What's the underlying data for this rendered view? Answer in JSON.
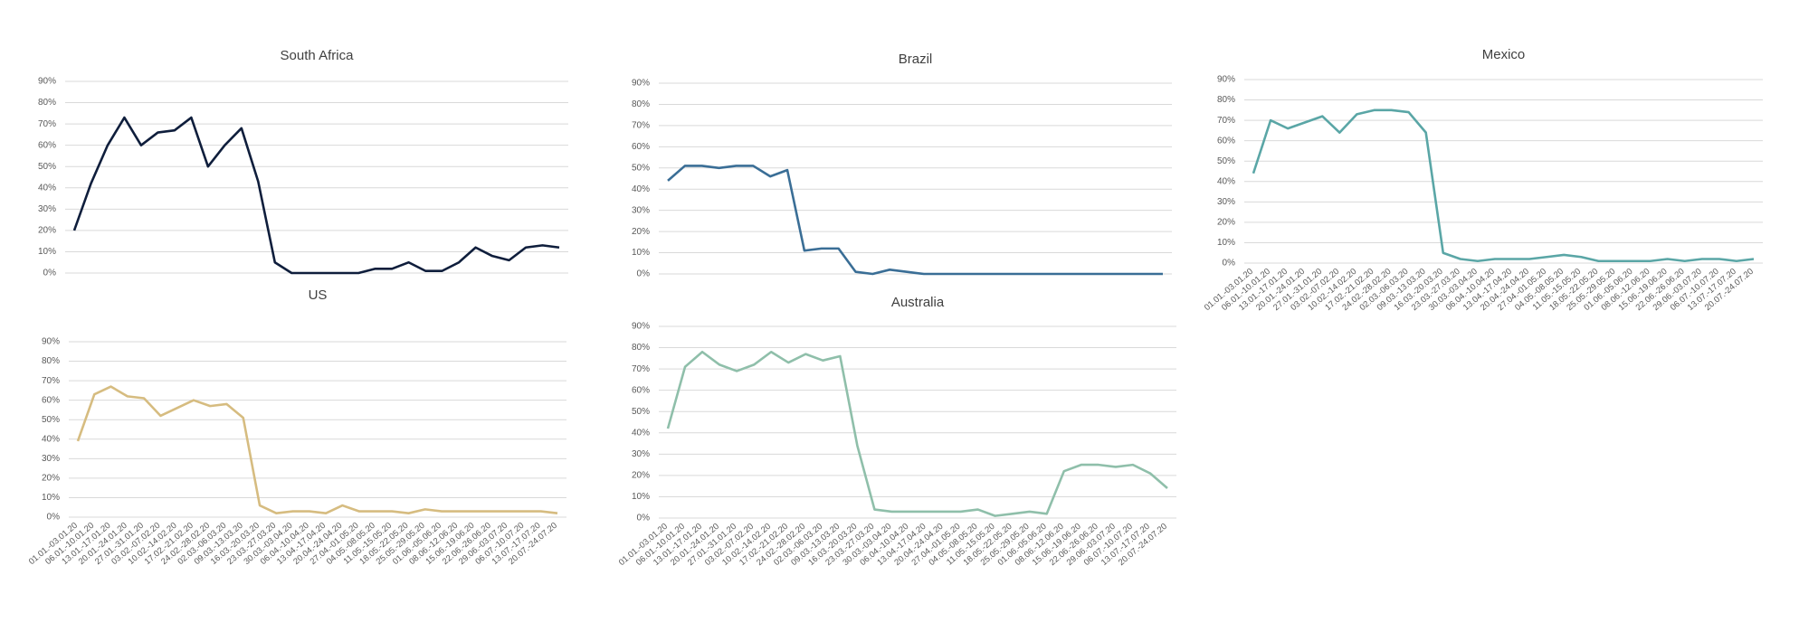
{
  "chart_data": [
    {
      "type": "line",
      "title": "South Africa",
      "color": "#0f1e3c",
      "values": [
        20,
        42,
        60,
        73,
        60,
        66,
        67,
        73,
        50,
        60,
        68,
        43,
        5,
        0,
        0,
        0,
        0,
        0,
        2,
        2,
        5,
        1,
        1,
        5,
        12,
        8,
        6,
        12,
        13,
        12
      ],
      "ylim": [
        0,
        90
      ],
      "yticks": [
        {
          "value": 0,
          "label": "0%"
        },
        {
          "value": 10,
          "label": "10%"
        },
        {
          "value": 20,
          "label": "20%"
        },
        {
          "value": 30,
          "label": "30%"
        },
        {
          "value": 40,
          "label": "40%"
        },
        {
          "value": 50,
          "label": "50%"
        },
        {
          "value": 60,
          "label": "60%"
        },
        {
          "value": 70,
          "label": "70%"
        },
        {
          "value": 80,
          "label": "80%"
        },
        {
          "value": 90,
          "label": "90%"
        }
      ],
      "grid": true
    },
    {
      "type": "line",
      "title": "Brazil",
      "color": "#3a6e96",
      "values": [
        44,
        51,
        51,
        50,
        51,
        51,
        46,
        49,
        11,
        12,
        12,
        1,
        0,
        2,
        1,
        0,
        0,
        0,
        0,
        0,
        0,
        0,
        0,
        0,
        0,
        0,
        0,
        0,
        0,
        0
      ],
      "ylim": [
        0,
        90
      ],
      "yticks": [
        {
          "value": 0,
          "label": "0%"
        },
        {
          "value": 10,
          "label": "10%"
        },
        {
          "value": 20,
          "label": "20%"
        },
        {
          "value": 30,
          "label": "30%"
        },
        {
          "value": 40,
          "label": "40%"
        },
        {
          "value": 50,
          "label": "50%"
        },
        {
          "value": 60,
          "label": "60%"
        },
        {
          "value": 70,
          "label": "70%"
        },
        {
          "value": 80,
          "label": "80%"
        },
        {
          "value": 90,
          "label": "90%"
        }
      ],
      "grid": true
    },
    {
      "type": "line",
      "title": "Mexico",
      "color": "#5aa6a6",
      "categories": [
        "01.01.-03.01.20",
        "06.01.-10.01.20",
        "13.01.-17.01.20",
        "20.01.-24.01.20",
        "27.01.-31.01.20",
        "03.02.-07.02.20",
        "10.02.-14.02.20",
        "17.02.-21.02.20",
        "24.02.-28.02.20",
        "02.03.-06.03.20",
        "09.03.-13.03.20",
        "16.03.-20.03.20",
        "23.03.-27.03.20",
        "30.03.-03.04.20",
        "06.04.-10.04.20",
        "13.04.-17.04.20",
        "20.04.-24.04.20",
        "27.04.-01.05.20",
        "04.05.-08.05.20",
        "11.05.-15.05.20",
        "18.05.-22.05.20",
        "25.05.-29.05.20",
        "01.06.-05.06.20",
        "08.06.-12.06.20",
        "15.06.-19.06.20",
        "22.06.-26.06.20",
        "29.06.-03.07.20",
        "06.07.-10.07.20",
        "13.07.-17.07.20",
        "20.07.-24.07.20"
      ],
      "values": [
        44,
        70,
        66,
        69,
        72,
        64,
        73,
        75,
        75,
        74,
        64,
        5,
        2,
        1,
        2,
        2,
        2,
        3,
        4,
        3,
        1,
        1,
        1,
        1,
        2,
        1,
        2,
        2,
        1,
        2
      ],
      "ylim": [
        0,
        90
      ],
      "yticks": [
        {
          "value": 0,
          "label": "0%"
        },
        {
          "value": 10,
          "label": "10%"
        },
        {
          "value": 20,
          "label": "20%"
        },
        {
          "value": 30,
          "label": "30%"
        },
        {
          "value": 40,
          "label": "40%"
        },
        {
          "value": 50,
          "label": "50%"
        },
        {
          "value": 60,
          "label": "60%"
        },
        {
          "value": 70,
          "label": "70%"
        },
        {
          "value": 80,
          "label": "80%"
        },
        {
          "value": 90,
          "label": "90%"
        }
      ],
      "grid": true
    },
    {
      "type": "line",
      "title": "US",
      "color": "#d6bc80",
      "categories": [
        "01.01.-03.01.20",
        "06.01.-10.01.20",
        "13.01.-17.01.20",
        "20.01.-24.01.20",
        "27.01.-31.01.20",
        "03.02.-07.02.20",
        "10.02.-14.02.20",
        "17.02.-21.02.20",
        "24.02.-28.02.20",
        "02.03.-06.03.20",
        "09.03.-13.03.20",
        "16.03.-20.03.20",
        "23.03.-27.03.20",
        "30.03.-03.04.20",
        "06.04.-10.04.20",
        "13.04.-17.04.20",
        "20.04.-24.04.20",
        "27.04.-01.05.20",
        "04.05.-08.05.20",
        "11.05.-15.05.20",
        "18.05.-22.05.20",
        "25.05.-29.05.20",
        "01.06.-05.06.20",
        "08.06.-12.06.20",
        "15.06.-19.06.20",
        "22.06.-26.06.20",
        "29.06.-03.07.20",
        "06.07.-10.07.20",
        "13.07.-17.07.20",
        "20.07.-24.07.20"
      ],
      "values": [
        39,
        63,
        67,
        62,
        61,
        52,
        56,
        60,
        57,
        58,
        51,
        6,
        2,
        3,
        3,
        2,
        6,
        3,
        3,
        3,
        2,
        4,
        3,
        3,
        3,
        3,
        3,
        3,
        3,
        2
      ],
      "ylim": [
        0,
        90
      ],
      "yticks": [
        {
          "value": 0,
          "label": "0%"
        },
        {
          "value": 10,
          "label": "10%"
        },
        {
          "value": 20,
          "label": "20%"
        },
        {
          "value": 30,
          "label": "30%"
        },
        {
          "value": 40,
          "label": "40%"
        },
        {
          "value": 50,
          "label": "50%"
        },
        {
          "value": 60,
          "label": "60%"
        },
        {
          "value": 70,
          "label": "70%"
        },
        {
          "value": 80,
          "label": "80%"
        },
        {
          "value": 90,
          "label": "90%"
        }
      ],
      "grid": true
    },
    {
      "type": "line",
      "title": "Australia",
      "color": "#8fbfaa",
      "categories": [
        "01.01.-03.01.20",
        "06.01.-10.01.20",
        "13.01.-17.01.20",
        "20.01.-24.01.20",
        "27.01.-31.01.20",
        "03.02.-07.02.20",
        "10.02.-14.02.20",
        "17.02.-21.02.20",
        "24.02.-28.02.20",
        "02.03.-06.03.20",
        "09.03.-13.03.20",
        "16.03.-20.03.20",
        "23.03.-27.03.20",
        "30.03.-03.04.20",
        "06.04.-10.04.20",
        "13.04.-17.04.20",
        "20.04.-24.04.20",
        "27.04.-01.05.20",
        "04.05.-08.05.20",
        "11.05.-15.05.20",
        "18.05.-22.05.20",
        "25.05.-29.05.20",
        "01.06.-05.06.20",
        "08.06.-12.06.20",
        "15.06.-19.06.20",
        "22.06.-26.06.20",
        "29.06.-03.07.20",
        "06.07.-10.07.20",
        "13.07.-17.07.20",
        "20.07.-24.07.20"
      ],
      "values": [
        42,
        71,
        78,
        72,
        69,
        72,
        78,
        73,
        77,
        74,
        76,
        34,
        4,
        3,
        3,
        3,
        3,
        3,
        4,
        1,
        2,
        3,
        2,
        22,
        25,
        25,
        24,
        25,
        21,
        14
      ],
      "ylim": [
        0,
        90
      ],
      "yticks": [
        {
          "value": 0,
          "label": "0%"
        },
        {
          "value": 10,
          "label": "10%"
        },
        {
          "value": 20,
          "label": "20%"
        },
        {
          "value": 30,
          "label": "30%"
        },
        {
          "value": 40,
          "label": "40%"
        },
        {
          "value": 50,
          "label": "50%"
        },
        {
          "value": 60,
          "label": "60%"
        },
        {
          "value": 70,
          "label": "70%"
        },
        {
          "value": 80,
          "label": "80%"
        },
        {
          "value": 90,
          "label": "90%"
        }
      ],
      "grid": true
    }
  ]
}
